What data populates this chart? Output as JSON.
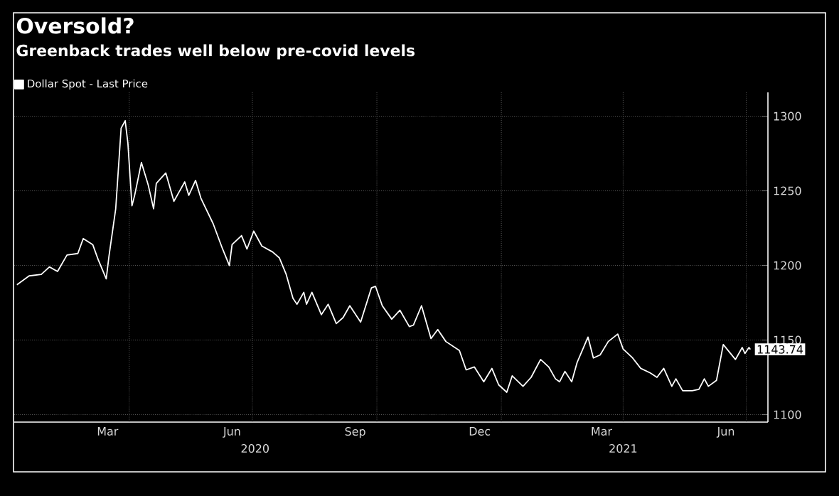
{
  "chart_data": {
    "type": "line",
    "title": "Oversold?",
    "subtitle": "Greenback trades well below pre-covid levels",
    "x": [
      "2020-01-09",
      "2020-01-18",
      "2020-01-27",
      "2020-02-02",
      "2020-02-08",
      "2020-02-15",
      "2020-02-23",
      "2020-02-27",
      "2020-03-05",
      "2020-03-09",
      "2020-03-15",
      "2020-03-17",
      "2020-03-22",
      "2020-03-26",
      "2020-03-29",
      "2020-03-31",
      "2020-04-03",
      "2020-04-05",
      "2020-04-10",
      "2020-04-15",
      "2020-04-19",
      "2020-04-21",
      "2020-04-28",
      "2020-05-04",
      "2020-05-12",
      "2020-05-15",
      "2020-05-20",
      "2020-05-24",
      "2020-06-02",
      "2020-06-09",
      "2020-06-14",
      "2020-06-16",
      "2020-06-23",
      "2020-06-27",
      "2020-07-02",
      "2020-07-08",
      "2020-07-16",
      "2020-07-21",
      "2020-07-26",
      "2020-07-31",
      "2020-08-03",
      "2020-08-08",
      "2020-08-10",
      "2020-08-14",
      "2020-08-21",
      "2020-08-26",
      "2020-09-01",
      "2020-09-06",
      "2020-09-11",
      "2020-09-19",
      "2020-09-27",
      "2020-09-30",
      "2020-10-05",
      "2020-10-12",
      "2020-10-18",
      "2020-10-25",
      "2020-10-28",
      "2020-11-03",
      "2020-11-10",
      "2020-11-15",
      "2020-11-21",
      "2020-12-01",
      "2020-12-06",
      "2020-12-12",
      "2020-12-19",
      "2020-12-25",
      "2020-12-30",
      "2021-01-05",
      "2021-01-09",
      "2021-01-17",
      "2021-01-23",
      "2021-01-30",
      "2021-02-05",
      "2021-02-10",
      "2021-02-13",
      "2021-02-17",
      "2021-02-22",
      "2021-02-26",
      "2021-03-06",
      "2021-03-10",
      "2021-03-15",
      "2021-03-21",
      "2021-03-28",
      "2021-04-01",
      "2021-04-08",
      "2021-04-14",
      "2021-04-21",
      "2021-04-26",
      "2021-05-01",
      "2021-05-07",
      "2021-05-10",
      "2021-05-15",
      "2021-05-22",
      "2021-05-27",
      "2021-05-31",
      "2021-06-03",
      "2021-06-09",
      "2021-06-14",
      "2021-06-23",
      "2021-06-28",
      "2021-06-30",
      "2021-07-03",
      "2021-07-04"
    ],
    "series": [
      {
        "name": "Dollar Spot - Last Price",
        "color": "#ffffff",
        "values": [
          1187,
          1193,
          1194,
          1199,
          1196,
          1207,
          1208,
          1218,
          1214,
          1204,
          1191,
          1206,
          1238,
          1292,
          1297,
          1282,
          1240,
          1247,
          1269,
          1254,
          1238,
          1255,
          1262,
          1243,
          1256,
          1247,
          1257,
          1245,
          1228,
          1211,
          1200,
          1214,
          1220,
          1211,
          1223,
          1213,
          1209,
          1205,
          1194,
          1178,
          1174,
          1182,
          1174,
          1182,
          1167,
          1174,
          1161,
          1165,
          1173,
          1162,
          1185,
          1186,
          1173,
          1164,
          1170,
          1159,
          1160,
          1173,
          1151,
          1157,
          1149,
          1143,
          1130,
          1132,
          1122,
          1131,
          1120,
          1115,
          1126,
          1119,
          1125,
          1137,
          1132,
          1124,
          1122,
          1129,
          1122,
          1135,
          1152,
          1138,
          1140,
          1149,
          1154,
          1144,
          1138,
          1131,
          1128,
          1125,
          1131,
          1119,
          1124,
          1116,
          1116,
          1117,
          1124,
          1119,
          1123,
          1147,
          1137,
          1145,
          1141,
          1145,
          1143.74
        ],
        "value_labels": [
          null,
          null,
          null,
          null,
          null,
          null,
          null,
          null,
          null,
          null,
          null,
          null,
          null,
          null,
          null,
          null,
          null,
          null,
          null,
          null,
          null,
          null,
          null,
          null,
          null,
          null,
          null,
          null,
          null,
          null,
          null,
          null,
          null,
          null,
          null,
          null,
          null,
          null,
          null,
          null,
          null,
          null,
          null,
          null,
          null,
          null,
          null,
          null,
          null,
          null,
          null,
          null,
          null,
          null,
          null,
          null,
          null,
          null,
          null,
          null,
          null,
          null,
          null,
          null,
          null,
          null,
          null,
          null,
          null,
          null,
          null,
          null,
          null,
          null,
          null,
          null,
          null,
          null,
          null,
          null,
          null,
          null,
          null,
          null,
          null,
          null,
          null,
          null,
          null,
          null,
          null,
          null,
          null,
          null,
          null,
          null,
          null,
          null,
          null,
          null,
          null,
          null,
          "1143.74"
        ]
      }
    ],
    "xlim": [
      "2020-01-07",
      "2021-07-17"
    ],
    "ylim": [
      1095,
      1316
    ],
    "xticks": [
      {
        "value": "2020-03-16",
        "label": "Mar"
      },
      {
        "value": "2020-06-16",
        "label": "Jun"
      },
      {
        "value": "2020-09-15",
        "label": "Sep"
      },
      {
        "value": "2020-12-16",
        "label": "Dec"
      },
      {
        "value": "2021-03-16",
        "label": "Mar"
      },
      {
        "value": "2021-06-16",
        "label": "Jun"
      },
      {
        "value": "2020-04-01",
        "label": null
      },
      {
        "value": "2020-07-01",
        "label": null
      },
      {
        "value": "2020-10-01",
        "label": null
      },
      {
        "value": "2021-01-01",
        "label": null
      },
      {
        "value": "2021-04-01",
        "label": null
      },
      {
        "value": "2021-07-01",
        "label": null
      }
    ],
    "x2lim": [
      "2020-01-07",
      "2021-07-17"
    ],
    "x2ticks": [
      {
        "value": "2020-07-03",
        "label": "2020"
      },
      {
        "value": "2021-04-01",
        "label": "2021"
      }
    ],
    "yticks": [
      1100,
      1150,
      1200,
      1250,
      1300
    ],
    "grid": true,
    "legend": "top left"
  }
}
